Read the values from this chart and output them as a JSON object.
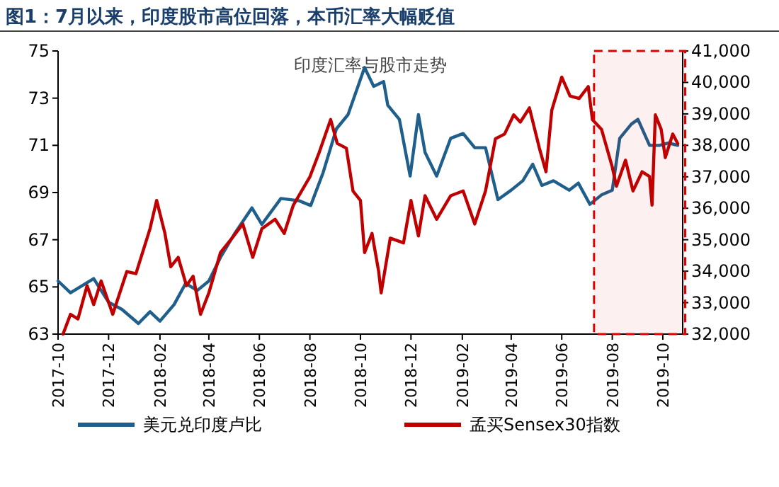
{
  "chart_data": {
    "type": "line",
    "title": "图1：7月以来，印度股市高位回落，本币汇率大幅贬值",
    "subtitle": "印度汇率与股市走势",
    "series": [
      {
        "name": "美元兑印度卢比",
        "color": "#1f5f8b",
        "axis": "y",
        "x": [
          "2017-10-01",
          "2017-10-16",
          "2017-11-13",
          "2017-12-01",
          "2017-12-17",
          "2018-01-06",
          "2018-01-20",
          "2018-02-01",
          "2018-02-18",
          "2018-03-04",
          "2018-03-18",
          "2018-04-01",
          "2018-04-15",
          "2018-05-02",
          "2018-05-23",
          "2018-06-04",
          "2018-06-27",
          "2018-07-19",
          "2018-08-02",
          "2018-08-17",
          "2018-09-02",
          "2018-09-16",
          "2018-10-06",
          "2018-10-17",
          "2018-10-29",
          "2018-11-03",
          "2018-11-17",
          "2018-11-30",
          "2018-12-10",
          "2018-12-18",
          "2019-01-01",
          "2019-01-18",
          "2019-02-02",
          "2019-02-16",
          "2019-03-01",
          "2019-03-16",
          "2019-04-01",
          "2019-04-15",
          "2019-04-27",
          "2019-05-08",
          "2019-05-22",
          "2019-06-10",
          "2019-06-21",
          "2019-07-05",
          "2019-07-19",
          "2019-08-01",
          "2019-08-10",
          "2019-08-24",
          "2019-09-01",
          "2019-09-15",
          "2019-09-27",
          "2019-10-08",
          "2019-10-19"
        ],
        "values": [
          65.25,
          64.75,
          65.35,
          64.35,
          64.05,
          63.45,
          63.95,
          63.55,
          64.25,
          65.15,
          64.85,
          65.25,
          66.25,
          67.25,
          68.35,
          67.65,
          68.75,
          68.65,
          68.45,
          69.85,
          71.7,
          72.3,
          74.3,
          73.5,
          73.7,
          72.7,
          72.1,
          69.7,
          72.3,
          70.7,
          69.7,
          71.3,
          71.5,
          70.9,
          70.9,
          68.7,
          69.1,
          69.5,
          70.2,
          69.3,
          69.5,
          69.1,
          69.4,
          68.5,
          68.9,
          69.1,
          71.3,
          71.9,
          72.1,
          71.0,
          71.0,
          71.1,
          71.0
        ]
      },
      {
        "name": "孟买Sensex30指数",
        "color": "#c00000",
        "axis": "y2",
        "x": [
          "2017-10-07",
          "2017-10-16",
          "2017-10-25",
          "2017-11-05",
          "2017-11-13",
          "2017-11-22",
          "2017-12-06",
          "2017-12-23",
          "2018-01-03",
          "2018-01-20",
          "2018-01-28",
          "2018-02-07",
          "2018-02-14",
          "2018-02-23",
          "2018-03-05",
          "2018-03-13",
          "2018-03-22",
          "2018-04-01",
          "2018-04-15",
          "2018-04-29",
          "2018-05-12",
          "2018-05-24",
          "2018-06-04",
          "2018-06-20",
          "2018-07-01",
          "2018-07-12",
          "2018-08-01",
          "2018-08-12",
          "2018-08-26",
          "2018-09-03",
          "2018-09-14",
          "2018-09-22",
          "2018-10-01",
          "2018-10-06",
          "2018-10-15",
          "2018-10-23",
          "2018-10-26",
          "2018-11-06",
          "2018-11-22",
          "2018-12-01",
          "2018-12-10",
          "2018-12-18",
          "2019-01-01",
          "2019-01-18",
          "2019-02-02",
          "2019-02-16",
          "2019-03-01",
          "2019-03-13",
          "2019-03-24",
          "2019-04-04",
          "2019-04-12",
          "2019-04-23",
          "2019-05-05",
          "2019-05-13",
          "2019-05-20",
          "2019-06-01",
          "2019-06-11",
          "2019-06-22",
          "2019-07-03",
          "2019-07-08",
          "2019-07-19",
          "2019-08-01",
          "2019-08-06",
          "2019-08-17",
          "2019-08-26",
          "2019-09-06",
          "2019-09-15",
          "2019-09-18",
          "2019-09-22",
          "2019-09-29",
          "2019-10-04",
          "2019-10-13",
          "2019-10-19"
        ],
        "values": [
          32000,
          32630,
          32480,
          33540,
          32940,
          33690,
          32630,
          33990,
          33920,
          35350,
          36250,
          35200,
          34140,
          34440,
          33540,
          33840,
          32630,
          33310,
          34590,
          35050,
          35500,
          34440,
          35350,
          35650,
          35200,
          36100,
          37000,
          37760,
          38820,
          38060,
          37910,
          36550,
          36250,
          34590,
          35200,
          33990,
          33310,
          35050,
          34900,
          36250,
          35120,
          36400,
          35650,
          36400,
          36550,
          35500,
          36550,
          38210,
          38360,
          38970,
          38740,
          39190,
          37910,
          37160,
          39120,
          40170,
          39570,
          39490,
          39870,
          38820,
          38510,
          37310,
          36700,
          37530,
          36550,
          37160,
          37010,
          36100,
          38970,
          38510,
          37610,
          38360,
          38060
        ]
      }
    ],
    "xlim": [
      "2017-10-01",
      "2019-10-25"
    ],
    "xticks": [
      "2017-10",
      "2017-12",
      "2018-02",
      "2018-04",
      "2018-06",
      "2018-08",
      "2018-10",
      "2018-12",
      "2019-02",
      "2019-04",
      "2019-06",
      "2019-08",
      "2019-10"
    ],
    "ylim": [
      63,
      75
    ],
    "yticks": [
      63,
      65,
      67,
      69,
      71,
      73,
      75
    ],
    "y2lim": [
      32000,
      41000
    ],
    "y2ticks": [
      {
        "value": 32000,
        "label": "32,000"
      },
      {
        "value": 33000,
        "label": "33,000"
      },
      {
        "value": 34000,
        "label": "34,000"
      },
      {
        "value": 35000,
        "label": "35,000"
      },
      {
        "value": 36000,
        "label": "36,000"
      },
      {
        "value": 37000,
        "label": "37,000"
      },
      {
        "value": 38000,
        "label": "38,000"
      },
      {
        "value": 39000,
        "label": "39,000"
      },
      {
        "value": 40000,
        "label": "40,000"
      },
      {
        "value": 41000,
        "label": "41,000"
      }
    ],
    "bands": [
      {
        "axis": "x",
        "from": "2019-07-10",
        "to": "2019-10-28",
        "color": "#e00000"
      }
    ],
    "legend": "bottom",
    "grid": false,
    "marker": "none",
    "line_style": "solid"
  }
}
